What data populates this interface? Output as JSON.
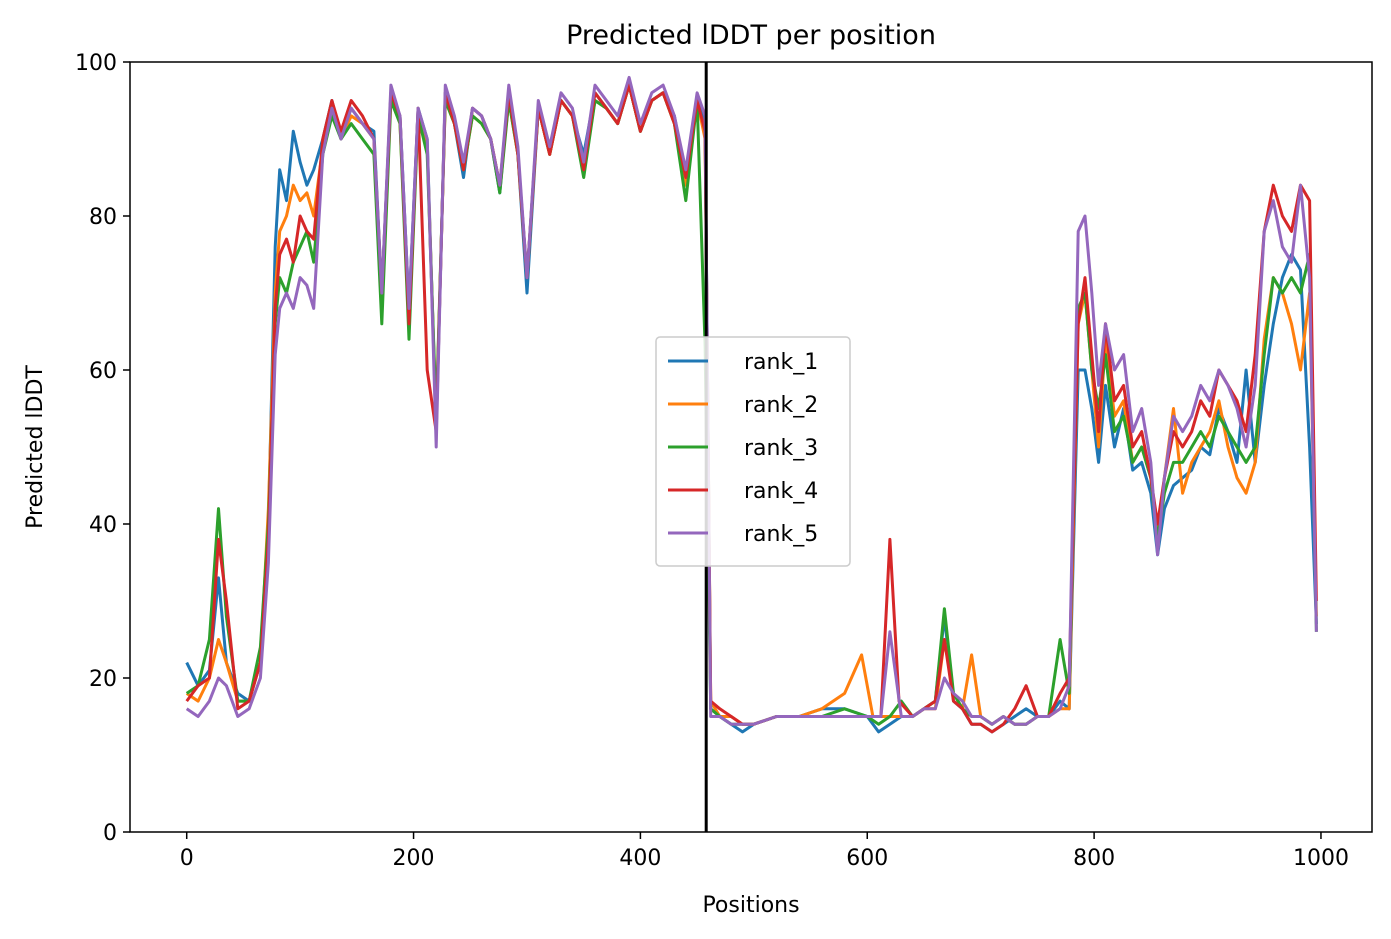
{
  "chart_data": {
    "type": "line",
    "title": "Predicted lDDT per position",
    "xlabel": "Positions",
    "ylabel": "Predicted lDDT",
    "xlim": [
      -50,
      1045
    ],
    "ylim": [
      0,
      100
    ],
    "xticks": [
      0,
      200,
      400,
      600,
      800,
      1000
    ],
    "yticks": [
      0,
      20,
      40,
      60,
      80,
      100
    ],
    "grid": false,
    "legend_position": "center",
    "chain_break_x": 458,
    "chain_break_color": "#000000",
    "series": [
      {
        "name": "rank_1",
        "color": "#1f77b4",
        "x": [
          0,
          10,
          20,
          28,
          35,
          45,
          55,
          65,
          72,
          78,
          82,
          88,
          94,
          100,
          106,
          112,
          120,
          128,
          136,
          145,
          155,
          165,
          172,
          180,
          188,
          196,
          204,
          212,
          220,
          228,
          236,
          244,
          252,
          260,
          268,
          276,
          284,
          292,
          300,
          310,
          320,
          330,
          340,
          350,
          360,
          370,
          380,
          390,
          400,
          410,
          420,
          430,
          440,
          450,
          457,
          462,
          470,
          480,
          490,
          500,
          520,
          540,
          560,
          580,
          600,
          610,
          620,
          630,
          640,
          650,
          660,
          668,
          676,
          684,
          692,
          700,
          710,
          720,
          730,
          740,
          750,
          760,
          770,
          778,
          786,
          792,
          798,
          804,
          810,
          818,
          826,
          834,
          842,
          850,
          856,
          862,
          870,
          878,
          886,
          894,
          902,
          910,
          918,
          926,
          934,
          942,
          950,
          958,
          966,
          974,
          982,
          990,
          996
        ],
        "y": [
          22,
          19,
          21,
          33,
          22,
          18,
          17,
          22,
          40,
          76,
          86,
          82,
          91,
          87,
          84,
          86,
          90,
          95,
          90,
          94,
          92,
          91,
          70,
          96,
          93,
          68,
          94,
          90,
          52,
          96,
          92,
          85,
          94,
          93,
          90,
          83,
          96,
          88,
          70,
          94,
          89,
          95,
          93,
          88,
          96,
          94,
          92,
          97,
          91,
          95,
          96,
          93,
          85,
          95,
          92,
          16,
          15,
          14,
          13,
          14,
          15,
          15,
          16,
          16,
          15,
          13,
          14,
          15,
          15,
          16,
          17,
          28,
          17,
          16,
          14,
          14,
          13,
          14,
          15,
          16,
          15,
          15,
          17,
          16,
          60,
          60,
          55,
          48,
          58,
          50,
          55,
          47,
          48,
          44,
          36,
          42,
          45,
          46,
          47,
          50,
          49,
          55,
          52,
          48,
          60,
          48,
          58,
          66,
          72,
          75,
          73,
          50,
          27
        ]
      },
      {
        "name": "rank_2",
        "color": "#ff7f0e",
        "x": [
          0,
          10,
          20,
          28,
          35,
          45,
          55,
          65,
          72,
          78,
          82,
          88,
          94,
          100,
          106,
          112,
          120,
          128,
          136,
          145,
          155,
          165,
          172,
          180,
          188,
          196,
          204,
          212,
          220,
          228,
          236,
          244,
          252,
          260,
          268,
          276,
          284,
          292,
          300,
          310,
          320,
          330,
          340,
          350,
          360,
          370,
          380,
          390,
          400,
          410,
          420,
          430,
          440,
          450,
          457,
          462,
          470,
          480,
          490,
          500,
          520,
          540,
          560,
          580,
          595,
          605,
          620,
          630,
          640,
          650,
          660,
          668,
          676,
          684,
          692,
          700,
          710,
          720,
          730,
          740,
          750,
          760,
          770,
          778,
          786,
          792,
          798,
          804,
          810,
          818,
          826,
          834,
          842,
          850,
          856,
          862,
          870,
          878,
          886,
          894,
          902,
          910,
          918,
          926,
          934,
          942,
          950,
          958,
          966,
          974,
          982,
          990,
          996
        ],
        "y": [
          18,
          17,
          20,
          25,
          22,
          17,
          17,
          22,
          42,
          70,
          78,
          80,
          84,
          82,
          83,
          80,
          89,
          94,
          90,
          93,
          92,
          90,
          68,
          96,
          92,
          66,
          93,
          89,
          53,
          95,
          92,
          86,
          93,
          92,
          90,
          84,
          95,
          88,
          72,
          94,
          88,
          95,
          93,
          86,
          95,
          94,
          92,
          97,
          91,
          95,
          96,
          92,
          84,
          95,
          90,
          17,
          15,
          15,
          14,
          14,
          15,
          15,
          16,
          18,
          23,
          15,
          15,
          15,
          15,
          16,
          16,
          25,
          18,
          16,
          23,
          15,
          14,
          15,
          14,
          14,
          15,
          15,
          16,
          16,
          66,
          70,
          60,
          50,
          64,
          54,
          56,
          48,
          50,
          46,
          38,
          46,
          55,
          44,
          48,
          50,
          52,
          56,
          50,
          46,
          44,
          48,
          64,
          72,
          70,
          66,
          60,
          70,
          28
        ]
      },
      {
        "name": "rank_3",
        "color": "#2ca02c",
        "x": [
          0,
          10,
          20,
          28,
          35,
          45,
          55,
          65,
          72,
          78,
          82,
          88,
          94,
          100,
          106,
          112,
          120,
          128,
          136,
          145,
          155,
          165,
          172,
          180,
          188,
          196,
          204,
          212,
          220,
          228,
          236,
          244,
          252,
          260,
          268,
          276,
          284,
          292,
          300,
          310,
          320,
          330,
          340,
          350,
          360,
          370,
          380,
          390,
          400,
          410,
          420,
          430,
          440,
          450,
          457,
          462,
          470,
          480,
          490,
          500,
          520,
          540,
          560,
          580,
          600,
          610,
          620,
          630,
          640,
          650,
          660,
          668,
          676,
          684,
          692,
          700,
          710,
          720,
          730,
          740,
          750,
          760,
          770,
          778,
          786,
          792,
          798,
          804,
          810,
          818,
          826,
          834,
          842,
          850,
          856,
          862,
          870,
          878,
          886,
          894,
          902,
          910,
          918,
          926,
          934,
          942,
          950,
          958,
          966,
          974,
          982,
          990,
          996
        ],
        "y": [
          18,
          19,
          25,
          42,
          28,
          17,
          17,
          24,
          40,
          66,
          72,
          70,
          74,
          76,
          78,
          74,
          88,
          93,
          90,
          92,
          90,
          88,
          66,
          95,
          92,
          64,
          93,
          88,
          54,
          95,
          92,
          86,
          93,
          92,
          90,
          83,
          95,
          88,
          72,
          94,
          88,
          95,
          93,
          85,
          95,
          94,
          92,
          97,
          91,
          95,
          96,
          92,
          82,
          95,
          63,
          16,
          15,
          14,
          14,
          14,
          15,
          15,
          15,
          16,
          15,
          14,
          15,
          17,
          15,
          16,
          17,
          29,
          18,
          16,
          15,
          15,
          14,
          15,
          14,
          14,
          15,
          15,
          25,
          18,
          68,
          70,
          60,
          55,
          62,
          52,
          54,
          48,
          50,
          46,
          38,
          44,
          48,
          48,
          50,
          52,
          50,
          54,
          52,
          50,
          48,
          50,
          62,
          72,
          70,
          72,
          70,
          75,
          26
        ]
      },
      {
        "name": "rank_4",
        "color": "#d62728",
        "x": [
          0,
          10,
          20,
          28,
          35,
          45,
          55,
          65,
          72,
          78,
          82,
          88,
          94,
          100,
          106,
          112,
          120,
          128,
          136,
          145,
          155,
          165,
          172,
          180,
          188,
          196,
          204,
          212,
          220,
          228,
          236,
          244,
          252,
          260,
          268,
          276,
          284,
          292,
          300,
          310,
          320,
          330,
          340,
          350,
          360,
          370,
          380,
          390,
          400,
          410,
          420,
          430,
          440,
          450,
          457,
          462,
          470,
          480,
          490,
          500,
          520,
          540,
          560,
          580,
          600,
          612,
          620,
          628,
          640,
          650,
          660,
          668,
          676,
          684,
          692,
          700,
          710,
          720,
          730,
          740,
          750,
          760,
          770,
          778,
          786,
          792,
          798,
          804,
          810,
          818,
          826,
          834,
          842,
          850,
          856,
          862,
          870,
          878,
          886,
          894,
          902,
          910,
          918,
          926,
          934,
          942,
          950,
          958,
          966,
          974,
          982,
          990,
          996
        ],
        "y": [
          17,
          19,
          20,
          38,
          30,
          16,
          17,
          22,
          38,
          68,
          75,
          77,
          74,
          80,
          78,
          77,
          90,
          95,
          91,
          95,
          93,
          90,
          70,
          96,
          93,
          66,
          94,
          60,
          52,
          96,
          92,
          86,
          94,
          93,
          90,
          84,
          96,
          88,
          72,
          94,
          88,
          95,
          93,
          86,
          96,
          94,
          92,
          97,
          91,
          95,
          96,
          92,
          85,
          95,
          91,
          17,
          16,
          15,
          14,
          14,
          15,
          15,
          15,
          15,
          15,
          15,
          38,
          17,
          15,
          16,
          17,
          25,
          17,
          16,
          14,
          14,
          13,
          14,
          16,
          19,
          15,
          15,
          18,
          20,
          66,
          72,
          62,
          52,
          66,
          56,
          58,
          50,
          52,
          46,
          40,
          46,
          52,
          50,
          52,
          56,
          54,
          60,
          58,
          56,
          52,
          62,
          78,
          84,
          80,
          78,
          84,
          82,
          30
        ]
      },
      {
        "name": "rank_5",
        "color": "#9467bd",
        "x": [
          0,
          10,
          20,
          28,
          35,
          45,
          55,
          65,
          72,
          78,
          82,
          88,
          94,
          100,
          106,
          112,
          120,
          128,
          136,
          145,
          155,
          165,
          172,
          180,
          188,
          196,
          204,
          212,
          220,
          228,
          236,
          244,
          252,
          260,
          268,
          276,
          284,
          292,
          300,
          310,
          320,
          330,
          340,
          350,
          360,
          370,
          380,
          390,
          400,
          410,
          420,
          430,
          440,
          450,
          457,
          462,
          470,
          480,
          490,
          500,
          520,
          540,
          560,
          580,
          600,
          612,
          620,
          630,
          640,
          650,
          660,
          668,
          676,
          684,
          692,
          700,
          710,
          720,
          730,
          740,
          750,
          760,
          770,
          778,
          786,
          792,
          798,
          804,
          810,
          818,
          826,
          834,
          842,
          850,
          856,
          862,
          870,
          878,
          886,
          894,
          902,
          910,
          918,
          926,
          934,
          942,
          950,
          958,
          966,
          974,
          982,
          990,
          996
        ],
        "y": [
          16,
          15,
          17,
          20,
          19,
          15,
          16,
          20,
          35,
          62,
          68,
          70,
          68,
          72,
          71,
          68,
          88,
          94,
          90,
          94,
          92,
          90,
          70,
          97,
          93,
          68,
          94,
          90,
          50,
          97,
          93,
          87,
          94,
          93,
          90,
          84,
          97,
          89,
          72,
          95,
          89,
          96,
          94,
          87,
          97,
          95,
          93,
          98,
          92,
          96,
          97,
          93,
          86,
          96,
          93,
          15,
          15,
          14,
          14,
          14,
          15,
          15,
          15,
          15,
          15,
          15,
          26,
          15,
          15,
          16,
          16,
          20,
          18,
          17,
          15,
          15,
          14,
          15,
          14,
          14,
          15,
          15,
          16,
          19,
          78,
          80,
          70,
          58,
          66,
          60,
          62,
          52,
          55,
          48,
          36,
          46,
          54,
          52,
          54,
          58,
          56,
          60,
          58,
          55,
          50,
          58,
          78,
          82,
          76,
          74,
          84,
          72,
          26
        ]
      }
    ]
  }
}
